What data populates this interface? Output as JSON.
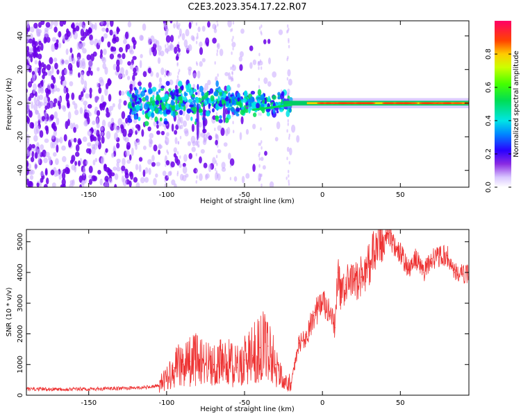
{
  "title": "C2E3.2023.354.17.22.R07",
  "chart_data": [
    {
      "type": "heatmap",
      "name": "spectrogram",
      "xlabel": "Height of straight line (km)",
      "ylabel": "Frequency (Hz)",
      "xlim": [
        -190,
        94
      ],
      "ylim": [
        -50,
        49
      ],
      "xticks": [
        -150,
        -100,
        -50,
        0,
        50
      ],
      "yticks": [
        40,
        20,
        0,
        -20,
        -40
      ],
      "colorbar": {
        "label": "Normalized spectral amplitude",
        "range": [
          0,
          1
        ],
        "ticks": [
          0.0,
          0.2,
          0.4,
          0.6,
          0.8
        ]
      },
      "grid": false
    },
    {
      "type": "line",
      "name": "snr",
      "xlabel": "Height of straight line (km)",
      "ylabel": "SNR (10 * v/v)",
      "xlim": [
        -190,
        94
      ],
      "ylim": [
        0,
        5400
      ],
      "xticks": [
        -150,
        -100,
        -50,
        0,
        50
      ],
      "yticks": [
        0,
        1000,
        2000,
        3000,
        4000,
        5000
      ],
      "color": "#ee3333",
      "grid": false,
      "series": [
        {
          "name": "SNR",
          "x": [
            -190,
            -170,
            -150,
            -130,
            -115,
            -105,
            -100,
            -95,
            -90,
            -85,
            -80,
            -75,
            -70,
            -65,
            -60,
            -55,
            -50,
            -45,
            -40,
            -35,
            -30,
            -25,
            -20,
            -15,
            -10,
            -5,
            0,
            5,
            8,
            10,
            12,
            15,
            20,
            25,
            30,
            35,
            40,
            43,
            45,
            50,
            55,
            60,
            65,
            70,
            75,
            80,
            85,
            90,
            94
          ],
          "y": [
            200,
            200,
            200,
            220,
            250,
            300,
            600,
            900,
            1000,
            1100,
            1200,
            1050,
            1000,
            1050,
            1100,
            900,
            1150,
            1300,
            1550,
            1600,
            1000,
            400,
            400,
            1700,
            1900,
            2700,
            3000,
            2600,
            2200,
            4000,
            3200,
            3600,
            3700,
            3850,
            4300,
            4800,
            5200,
            5300,
            4900,
            4650,
            4100,
            4450,
            4000,
            4450,
            4500,
            4550,
            4000,
            3950,
            3950
          ]
        }
      ]
    }
  ]
}
